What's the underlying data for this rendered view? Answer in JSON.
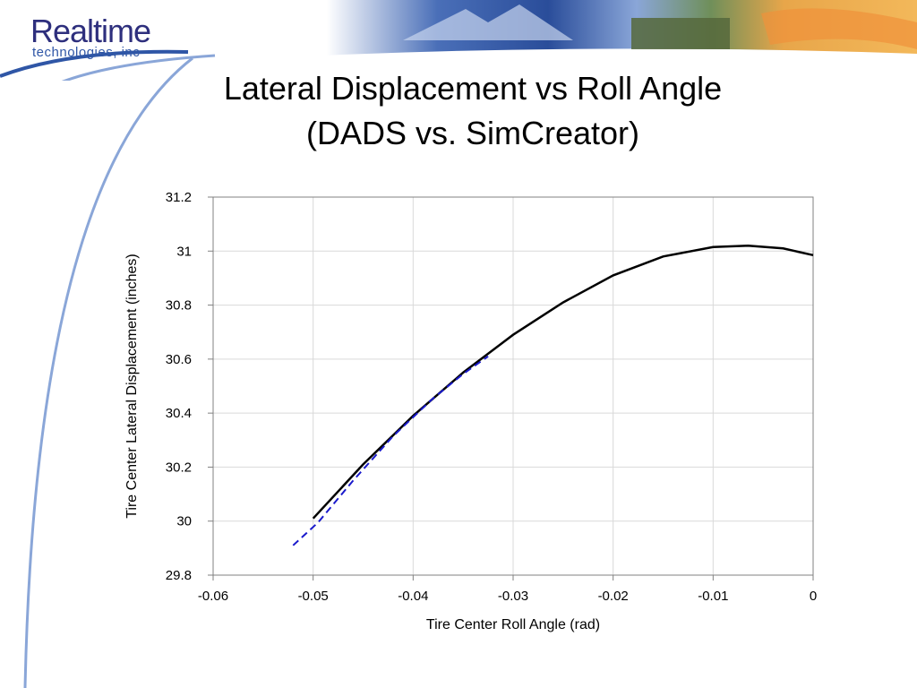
{
  "logo": {
    "name": "Realtime",
    "subtitle": "technologies, inc"
  },
  "slide": {
    "title_line1": "Lateral Displacement vs Roll Angle",
    "title_line2": "(DADS vs. SimCreator)"
  },
  "colors": {
    "series_dads": "#000000",
    "series_simcreator": "#1a1acc",
    "grid": "#d9d9d9",
    "logo": "#2e2f7d"
  },
  "chart_data": {
    "type": "line",
    "xlabel": "Tire Center Roll Angle (rad)",
    "ylabel": "Tire Center Lateral Displacement (inches)",
    "xlim": [
      -0.06,
      0
    ],
    "ylim": [
      29.8,
      31.2
    ],
    "xticks": [
      "-0.06",
      "-0.05",
      "-0.04",
      "-0.03",
      "-0.02",
      "-0.01",
      "0"
    ],
    "yticks": [
      "29.8",
      "30",
      "30.2",
      "30.4",
      "30.6",
      "30.8",
      "31",
      "31.2"
    ],
    "grid": true,
    "legend": "none",
    "series": [
      {
        "style": "solid",
        "color": "#000000",
        "x": [
          -0.05,
          -0.045,
          -0.04,
          -0.035,
          -0.03,
          -0.025,
          -0.02,
          -0.015,
          -0.01,
          -0.0065,
          -0.003,
          0
        ],
        "y": [
          30.01,
          30.21,
          30.39,
          30.55,
          30.69,
          30.81,
          30.91,
          30.98,
          31.015,
          31.02,
          31.01,
          30.985
        ]
      },
      {
        "style": "dashed",
        "color": "#1a1acc",
        "x": [
          -0.052,
          -0.0495,
          -0.046,
          -0.042,
          -0.038,
          -0.035,
          -0.0325
        ],
        "y": [
          29.91,
          29.995,
          30.15,
          30.315,
          30.455,
          30.545,
          30.61
        ]
      }
    ]
  }
}
